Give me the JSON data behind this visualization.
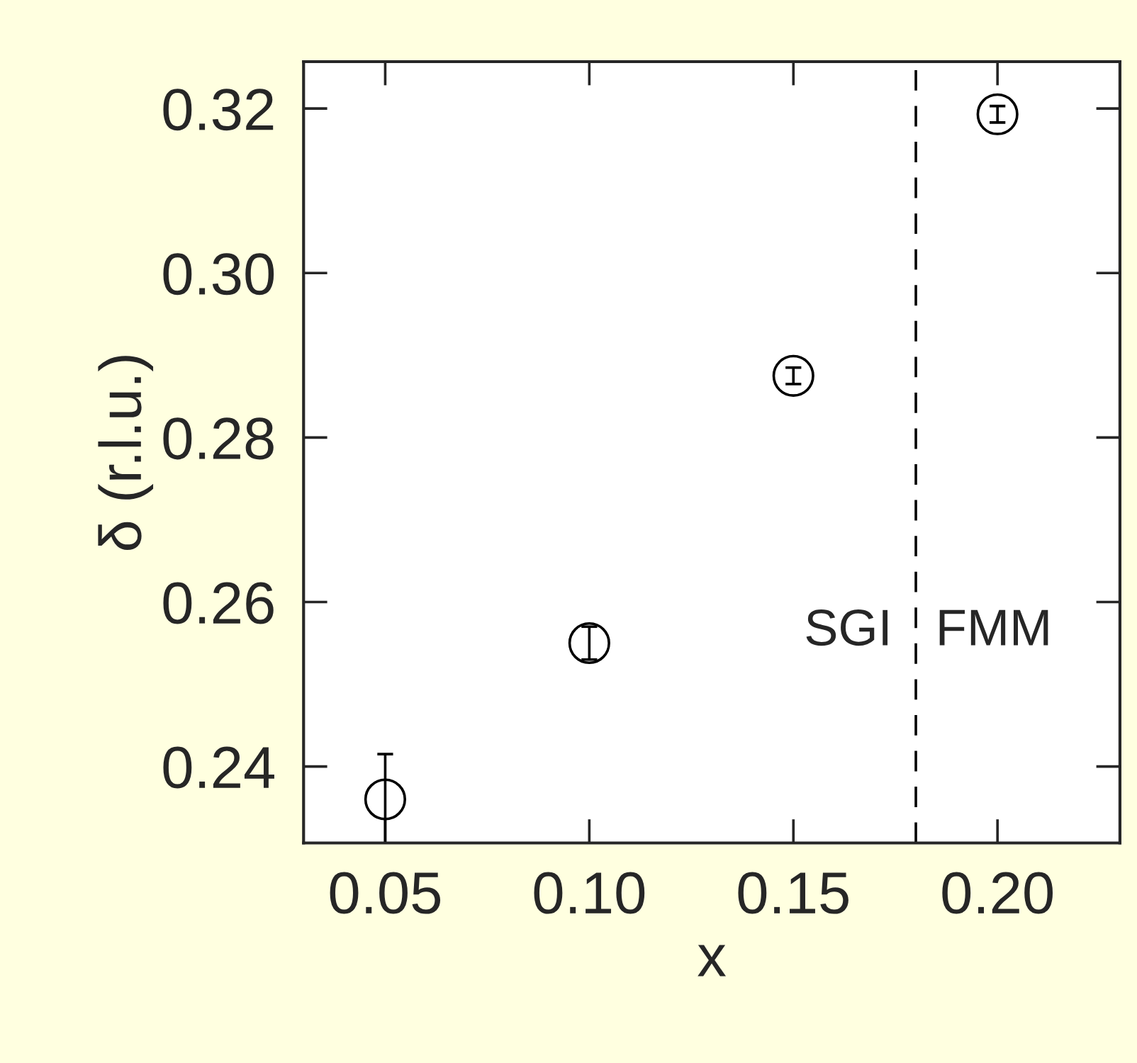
{
  "chart_data": {
    "type": "scatter",
    "xlabel": "x",
    "ylabel": "δ (r.l.u.)",
    "x": [
      0.05,
      0.1,
      0.15,
      0.2
    ],
    "series": [
      {
        "color": "#000000",
        "values": [
          0.236,
          0.255,
          0.2875,
          0.3193
        ],
        "errors": [
          0.0055,
          0.002,
          0.001,
          0.001
        ]
      }
    ],
    "marker": "circle",
    "xlim": [
      0.03,
      0.23
    ],
    "xticks": [
      {
        "value": 0.05,
        "label": "0.05"
      },
      {
        "value": 0.1,
        "label": "0.10"
      },
      {
        "value": 0.15,
        "label": "0.15"
      },
      {
        "value": 0.2,
        "label": "0.20"
      }
    ],
    "ylim": [
      0.2307,
      0.3257
    ],
    "yticks": [
      {
        "value": 0.24,
        "label": "0.24"
      },
      {
        "value": 0.26,
        "label": "0.26"
      },
      {
        "value": 0.28,
        "label": "0.28"
      },
      {
        "value": 0.3,
        "label": "0.30"
      },
      {
        "value": 0.32,
        "label": "0.32"
      }
    ],
    "ref_lines": [
      {
        "axis": "x",
        "value": 0.18,
        "line_style": "dashed",
        "color": "#000000"
      }
    ],
    "annotations": [
      "SGI",
      "FMM"
    ],
    "grid": false,
    "legend": false
  }
}
